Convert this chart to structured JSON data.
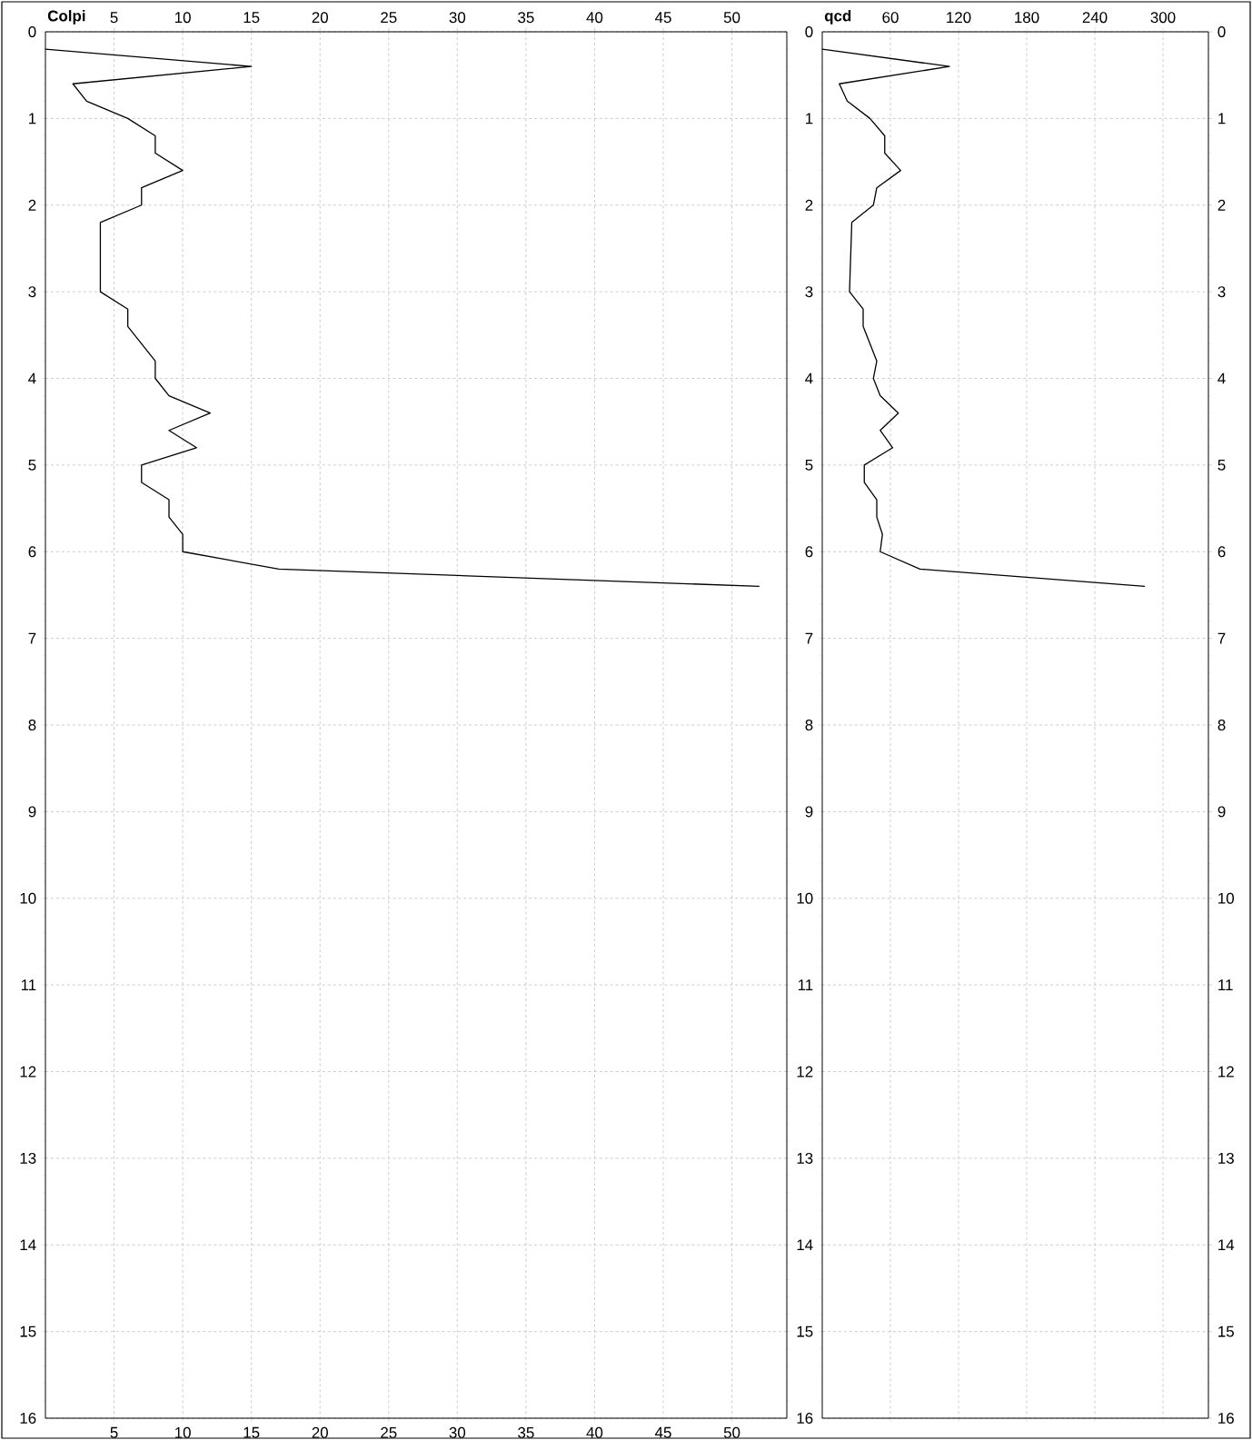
{
  "chart_data": [
    {
      "type": "line",
      "title": "Colpi",
      "xlim": [
        0,
        54
      ],
      "xticks": [
        5,
        10,
        15,
        20,
        25,
        30,
        35,
        40,
        45,
        50
      ],
      "x2lim": [
        0,
        54
      ],
      "x2ticks": [
        5,
        10,
        15,
        20,
        25,
        30,
        35,
        40,
        45,
        50
      ],
      "ylim": [
        16,
        0
      ],
      "yticks": [
        0,
        1,
        2,
        3,
        4,
        5,
        6,
        7,
        8,
        9,
        10,
        11,
        12,
        13,
        14,
        15,
        16
      ],
      "grid": true,
      "series": [
        {
          "color": "#000000",
          "x": [
            0,
            15,
            2,
            3,
            6,
            8,
            8,
            10,
            7,
            7,
            4,
            4,
            6,
            6,
            7,
            8,
            8,
            9,
            12,
            9,
            11,
            7,
            7,
            9,
            9,
            10,
            10,
            17,
            52
          ],
          "values": [
            0.2,
            0.4,
            0.6,
            0.8,
            1.0,
            1.2,
            1.4,
            1.6,
            1.8,
            2.0,
            2.2,
            3.0,
            3.2,
            3.4,
            3.6,
            3.8,
            4.0,
            4.2,
            4.4,
            4.6,
            4.8,
            5.0,
            5.2,
            5.4,
            5.6,
            5.8,
            6.0,
            6.2,
            6.4
          ]
        }
      ]
    },
    {
      "type": "line",
      "title": "qcd",
      "xlim": [
        0,
        340
      ],
      "xticks": [
        60,
        120,
        180,
        240,
        300
      ],
      "ylim": [
        16,
        0
      ],
      "yticks": [
        0,
        1,
        2,
        3,
        4,
        5,
        6,
        7,
        8,
        9,
        10,
        11,
        12,
        13,
        14,
        15,
        16
      ],
      "y2lim": [
        16,
        0
      ],
      "y2ticks": [
        0,
        1,
        2,
        3,
        4,
        5,
        6,
        7,
        8,
        9,
        10,
        11,
        12,
        13,
        14,
        15,
        16
      ],
      "grid": true,
      "series": [
        {
          "color": "#000000",
          "x": [
            0,
            112,
            15,
            22,
            42,
            55,
            55,
            69,
            48,
            45,
            26,
            24,
            36,
            36,
            42,
            48,
            45,
            51,
            67,
            51,
            62,
            37,
            37,
            48,
            48,
            53,
            51,
            86,
            284
          ],
          "values": [
            0.2,
            0.4,
            0.6,
            0.8,
            1.0,
            1.2,
            1.4,
            1.6,
            1.8,
            2.0,
            2.2,
            3.0,
            3.2,
            3.4,
            3.6,
            3.8,
            4.0,
            4.2,
            4.4,
            4.6,
            4.8,
            5.0,
            5.2,
            5.4,
            5.6,
            5.8,
            6.0,
            6.2,
            6.4
          ]
        }
      ]
    }
  ]
}
